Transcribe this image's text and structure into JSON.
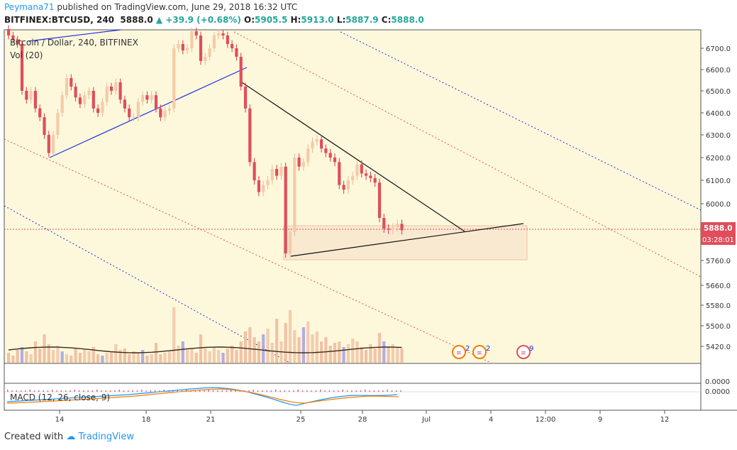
{
  "header": {
    "user": "Peymana71",
    "published": "published on TradingView.com, June 29, 2018 16:32 UTC",
    "symbol": "BITFINEX:BTCUSD, 240",
    "last": "5888.0",
    "change": "+39.9 (+0.68%)",
    "open_label": "O:",
    "open": "5905.5",
    "high_label": "H:",
    "high": "5913.0",
    "low_label": "L:",
    "low": "5887.9",
    "close_label": "C:",
    "close": "5888.0"
  },
  "legend": {
    "title": "Bitcoin / Dollar, 240, BITFINEX",
    "volume": "Vol (20)",
    "macd": "MACD (12, 26, close, 9)"
  },
  "footer": {
    "created": "Created with",
    "brand": "TradingView"
  },
  "badges": [
    {
      "count": "2"
    },
    {
      "count": "2"
    },
    {
      "count": "9"
    }
  ],
  "price_tag": {
    "price": "5888.0",
    "countdown": "03:28:01"
  },
  "macd_axis": [
    "0.0000",
    "0.0000"
  ],
  "colors": {
    "up": "#f5cba7",
    "down": "#e04d5c",
    "bg": "#fdf8dc",
    "blue": "#1a2fe0",
    "red": "#e8503a"
  },
  "chart_data": {
    "type": "candlestick",
    "title": "Bitcoin / Dollar, 240, BITFINEX",
    "y_ticks": [
      6700,
      6600,
      6500,
      6400,
      6300,
      6200,
      6100,
      6000,
      5760,
      5660,
      5580,
      5500,
      5420
    ],
    "y_tick_labels": [
      "6700.0",
      "6600.0",
      "6500.0",
      "6400.0",
      "6300.0",
      "6200.0",
      "6100.0",
      "6000.0",
      "5760.0",
      "5660.0",
      "5580.0",
      "5500.0",
      "5420.0"
    ],
    "x_tick_labels": [
      "14",
      "18",
      "21",
      "25",
      "28",
      "Jul",
      "4",
      "12:00",
      "9",
      "12"
    ],
    "last_price": 5888.0,
    "series": [
      {
        "name": "Bitcoin / Dollar",
        "close": [
          6760,
          6740,
          6720,
          6500,
          6460,
          6500,
          6420,
          6380,
          6300,
          6220,
          6300,
          6400,
          6480,
          6560,
          6520,
          6470,
          6440,
          6480,
          6500,
          6420,
          6400,
          6450,
          6520,
          6500,
          6540,
          6460,
          6420,
          6380,
          6380,
          6450,
          6480,
          6460,
          6480,
          6420,
          6380,
          6410,
          6420,
          6700,
          6720,
          6690,
          6700,
          6780,
          6760,
          6640,
          6660,
          6700,
          6760,
          6770,
          6760,
          6720,
          6700,
          6660,
          6520,
          6420,
          6180,
          6100,
          6050,
          6080,
          6100,
          6150,
          6120,
          6160,
          5790,
          5880,
          6200,
          6160,
          6180,
          6240,
          6270,
          6280,
          6240,
          6220,
          6200,
          6180,
          6080,
          6060,
          6100,
          6120,
          6170,
          6130,
          6120,
          6110,
          6090,
          5940,
          5895,
          5890,
          5900,
          5915,
          5888
        ]
      }
    ],
    "volume_label": "Vol (20)",
    "macd_label": "MACD (12, 26, close, 9)"
  }
}
